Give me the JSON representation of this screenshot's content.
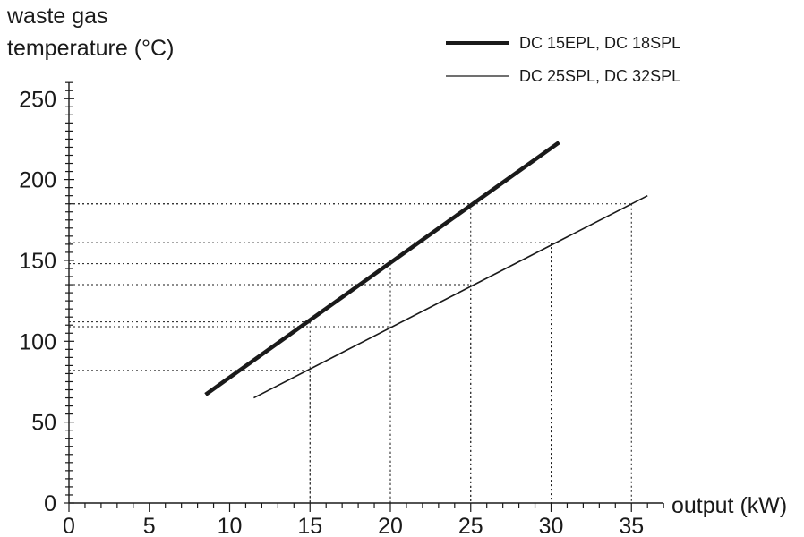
{
  "chart_data": {
    "type": "line",
    "ylabel_lines": [
      "waste gas",
      "temperature (°C)"
    ],
    "xlabel": "output (kW)",
    "xlim": [
      0,
      37
    ],
    "ylim": [
      0,
      260
    ],
    "x_ticks": [
      0,
      5,
      10,
      15,
      20,
      25,
      30,
      35
    ],
    "x_tick_labels": [
      "0",
      "5",
      "10",
      "15",
      "20",
      "25",
      "30",
      "35"
    ],
    "y_ticks": [
      0,
      50,
      100,
      150,
      200,
      250
    ],
    "y_tick_labels": [
      "0",
      "50",
      "100",
      "150",
      "200",
      "250"
    ],
    "x_minor_step": 1,
    "y_minor_step": 5,
    "grid": false,
    "legend_position": "top-right",
    "series": [
      {
        "name": "DC 15EPL, DC 18SPL",
        "style": "thick",
        "color": "#1a1a1a",
        "x": [
          8.5,
          30.5
        ],
        "y": [
          67,
          223
        ]
      },
      {
        "name": "DC 25SPL, DC 32SPL",
        "style": "thin",
        "color": "#1a1a1a",
        "x": [
          11.5,
          36
        ],
        "y": [
          65,
          190
        ]
      }
    ],
    "reference_lines": [
      {
        "x": 15,
        "y": 82
      },
      {
        "x": 15,
        "y": 112
      },
      {
        "x": 20,
        "y": 109
      },
      {
        "x": 20,
        "y": 148
      },
      {
        "x": 25,
        "y": 135
      },
      {
        "x": 25,
        "y": 185
      },
      {
        "x": 30,
        "y": 161
      },
      {
        "x": 35,
        "y": 185
      }
    ]
  }
}
